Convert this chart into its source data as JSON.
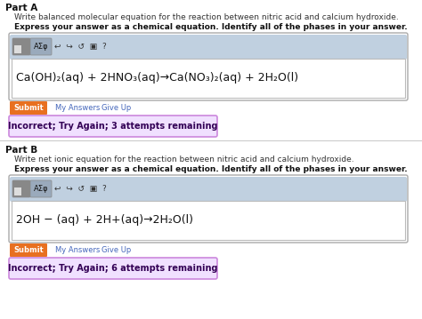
{
  "bg_color": "#ffffff",
  "border_color": "#cccccc",
  "part_a": {
    "part_label": "Part A",
    "line1": "Write balanced molecular equation for the reaction between nitric acid and calcium hydroxide.",
    "line2": "Express your answer as a chemical equation. Identify all of the phases in your answer.",
    "equation": "Ca(OH)₂(aq) + 2HNO₃(aq)→Ca(NO₃)₂(aq) + 2H₂O(l)",
    "feedback_text": "Incorrect; Try Again; 3 attempts remaining",
    "feedback_bg": "#f0e0ff",
    "feedback_border": "#cc88dd"
  },
  "part_b": {
    "part_label": "Part B",
    "line1": "Write net ionic equation for the reaction between nitric acid and calcium hydroxide.",
    "line2": "Express your answer as a chemical equation. Identify all of the phases in your answer.",
    "equation": "2OH − (aq) + 2H+(aq)→2H₂O(l)",
    "feedback_text": "Incorrect; Try Again; 6 attempts remaining",
    "feedback_bg": "#f0e0ff",
    "feedback_border": "#cc88dd"
  },
  "toolbar_bg": "#b8c8d8",
  "toolbar_btn_bg": "#8899aa",
  "submit_bg": "#e87020",
  "submit_text_color": "#ffffff",
  "link_color": "#4466bb",
  "eq_border": "#999999",
  "outer_box_border": "#aabbcc",
  "outer_box_bg": "#f8f8ff"
}
